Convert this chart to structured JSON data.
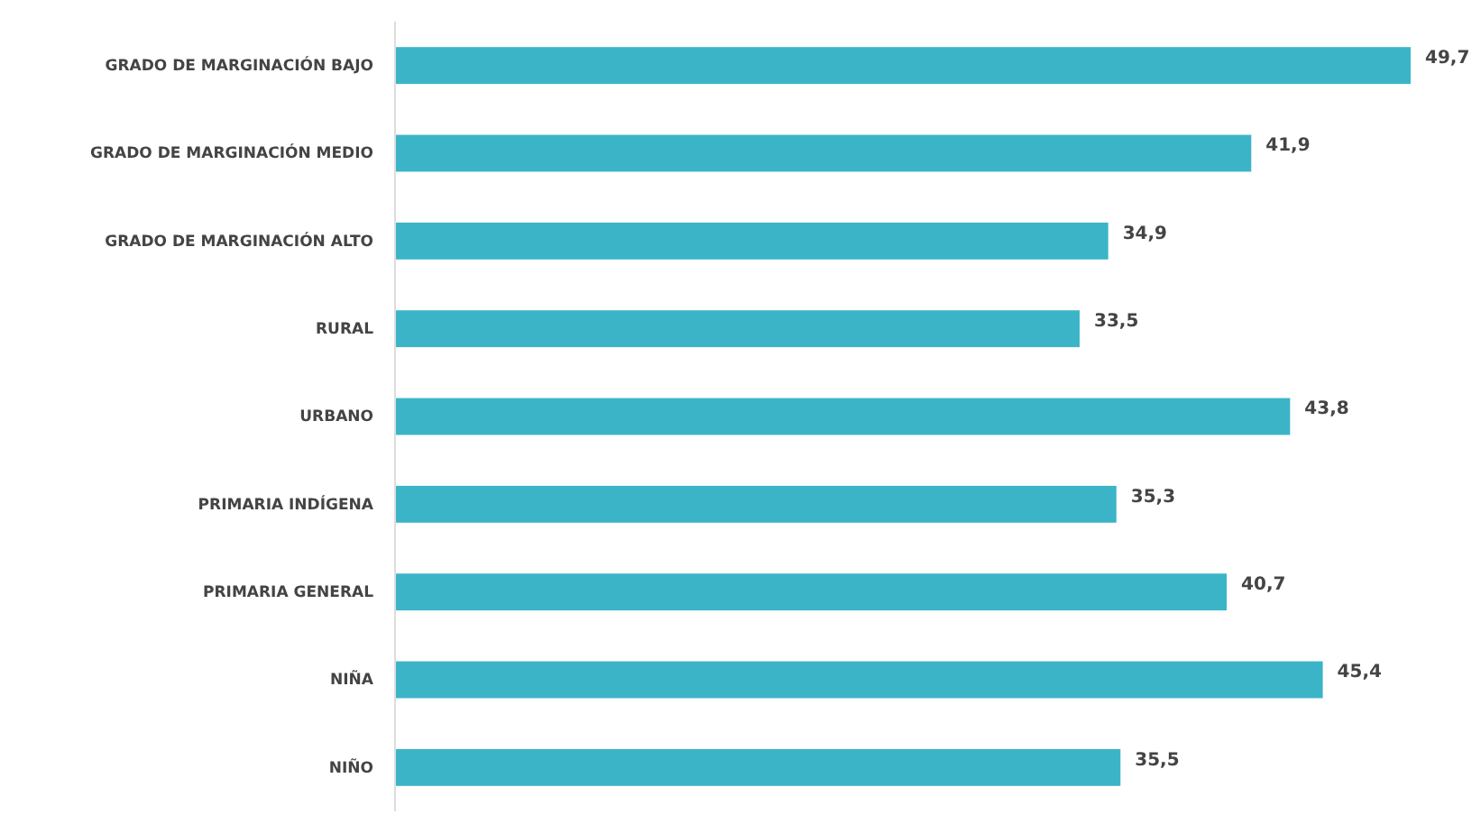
{
  "chart_data": {
    "type": "bar",
    "orientation": "horizontal",
    "categories": [
      "GRADO DE MARGINACIÓN BAJO",
      "GRADO DE MARGINACIÓN MEDIO",
      "GRADO DE MARGINACIÓN ALTO",
      "RURAL",
      "URBANO",
      "PRIMARIA INDÍGENA",
      "PRIMARIA GENERAL",
      "NIÑA",
      "NIÑO"
    ],
    "values": [
      49.7,
      41.9,
      34.9,
      33.5,
      43.8,
      35.3,
      40.7,
      45.4,
      35.5
    ],
    "value_labels": [
      "49,7",
      "41,9",
      "34,9",
      "33,5",
      "43,8",
      "35,3",
      "40,7",
      "45,4",
      "35,5"
    ],
    "color": "#3bb4c8"
  }
}
